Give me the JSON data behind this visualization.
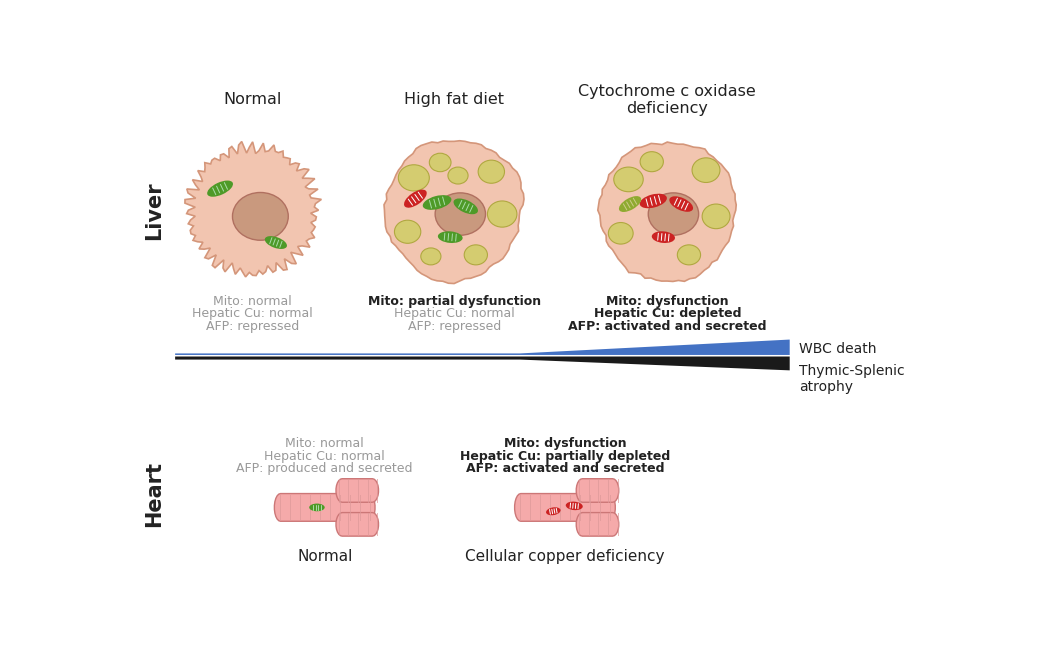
{
  "bg_color": "#ffffff",
  "liver_label": "Liver",
  "heart_label": "Heart",
  "liver_col1_title": "Normal",
  "liver_col2_title": "High fat diet",
  "liver_col3_title": "Cytochrome c oxidase\ndeficiency",
  "liver_col1_text_gray": [
    "Mito: normal",
    "Hepatic Cu: normal",
    "AFP: repressed"
  ],
  "liver_col2_text_mixed": [
    "Mito: partial dysfunction",
    "Hepatic Cu: normal",
    "AFP: repressed"
  ],
  "liver_col2_bold": [
    true,
    false,
    false
  ],
  "liver_col3_text_bold": [
    "Mito: dysfunction",
    "Hepatic Cu: depleted",
    "AFP: activated and secreted"
  ],
  "heart_col1_title": "Normal",
  "heart_col2_title": "Cellular copper deficiency",
  "heart_col1_text": [
    "Mito: normal",
    "Hepatic Cu: normal",
    "AFP: produced and secreted"
  ],
  "heart_col1_bold": [
    false,
    false,
    false
  ],
  "heart_col2_text": [
    "Mito: dysfunction",
    "Hepatic Cu: partially depleted",
    "AFP: activated and secreted"
  ],
  "heart_col2_bold": [
    true,
    true,
    true
  ],
  "wbc_label": "WBC death",
  "thymic_label": "Thymic-Splenic\natrophy",
  "cell_fill": "#f2c5b0",
  "cell_edge": "#d4967a",
  "nucleus_fill": "#c9997e",
  "nucleus_edge": "#b07060",
  "mito_green": "#4e9a28",
  "mito_red": "#cc2222",
  "mito_yellow_green": "#8faa30",
  "vacuole_fill": "#d4cc70",
  "vacuole_edge": "#b0a840",
  "blue_color": "#4472C4",
  "black_color": "#1a1a1a",
  "gray_text": "#999999",
  "dark_text": "#222222",
  "heart_cell_fill": "#f5aaaa",
  "heart_cell_edge": "#cc7777"
}
